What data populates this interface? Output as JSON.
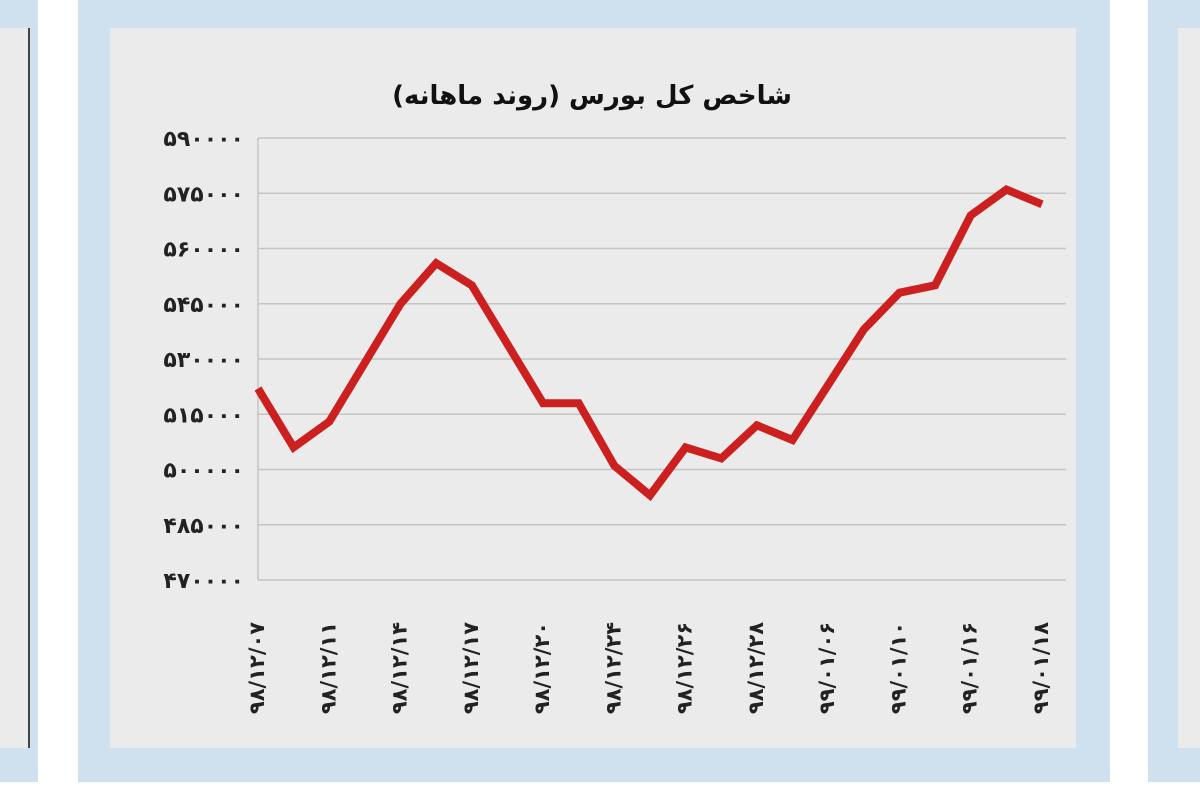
{
  "chart_data": {
    "type": "line",
    "title": "شاخص کل بورس (روند ماهانه)",
    "xlabel": "",
    "ylabel": "",
    "ylim": [
      470000,
      590000
    ],
    "y_ticks": [
      590000,
      575000,
      560000,
      545000,
      530000,
      515000,
      500000,
      485000,
      470000
    ],
    "y_tick_labels": [
      "۵۹۰۰۰۰",
      "۵۷۵۰۰۰",
      "۵۶۰۰۰۰",
      "۵۴۵۰۰۰",
      "۵۳۰۰۰۰",
      "۵۱۵۰۰۰",
      "۵۰۰۰۰۰",
      "۴۸۵۰۰۰",
      "۴۷۰۰۰۰"
    ],
    "x_tick_labels": [
      "۹۸/۱۲/۰۷",
      "۹۸/۱۲/۱۱",
      "۹۸/۱۲/۱۴",
      "۹۸/۱۲/۱۷",
      "۹۸/۱۲/۲۰",
      "۹۸/۱۲/۲۴",
      "۹۸/۱۲/۲۶",
      "۹۸/۱۲/۲۸",
      "۹۹/۰۱/۰۶",
      "۹۹/۰۱/۱۰",
      "۹۹/۰۱/۱۶",
      "۹۹/۰۱/۱۸"
    ],
    "line_color": "#cc1f1f",
    "grid": true,
    "series": [
      {
        "x": [
          0,
          0.5,
          1,
          1.5,
          2,
          2.5,
          3,
          3.5,
          4,
          4.5,
          5,
          5.5,
          6,
          6.5,
          7,
          7.5,
          8,
          8.5,
          9,
          9.5,
          10,
          10.5,
          11
        ],
        "values": [
          522000,
          506000,
          513000,
          529000,
          545000,
          556000,
          550000,
          534000,
          518000,
          518000,
          501000,
          493000,
          506000,
          503000,
          512000,
          508000,
          523000,
          538000,
          548000,
          550000,
          569000,
          576000,
          572000
        ]
      }
    ]
  }
}
